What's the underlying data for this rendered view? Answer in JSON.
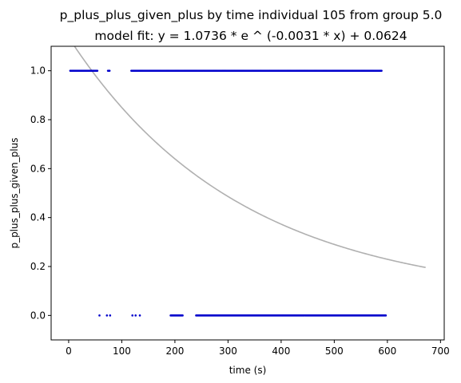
{
  "chart_data": {
    "type": "scatter",
    "title": "p_plus_plus_given_plus by time individual 105 from group 5.0",
    "subtitle": "model fit: y = 1.0736 * e ^ (-0.0031 * x) + 0.0624",
    "xlabel": "time (s)",
    "ylabel": "p_plus_plus_given_plus",
    "xlim": [
      -33,
      707
    ],
    "ylim": [
      -0.1,
      1.1
    ],
    "x_ticks": [
      0,
      100,
      200,
      300,
      400,
      500,
      600,
      700
    ],
    "y_ticks": [
      0.0,
      0.2,
      0.4,
      0.6,
      0.8,
      1.0
    ],
    "x_tick_labels": [
      "0",
      "100",
      "200",
      "300",
      "400",
      "500",
      "600",
      "700"
    ],
    "y_tick_labels": [
      "0.0",
      "0.2",
      "0.4",
      "0.6",
      "0.8",
      "1.0"
    ],
    "grid": false,
    "point_color": "#0000cc",
    "fit_color": "#b0b0b0",
    "fit_model": {
      "a": 1.0736,
      "b": 0.0031,
      "c": 0.0624,
      "x_range": [
        0,
        672
      ]
    },
    "point_groups": [
      {
        "y": 1,
        "segments": [
          [
            3,
            55
          ],
          [
            74,
            78
          ],
          [
            118,
            590
          ]
        ]
      },
      {
        "y": 0,
        "points": [
          58,
          72,
          78,
          120,
          126,
          134
        ],
        "segments": [
          [
            192,
            215
          ],
          [
            240,
            597
          ]
        ]
      }
    ]
  }
}
